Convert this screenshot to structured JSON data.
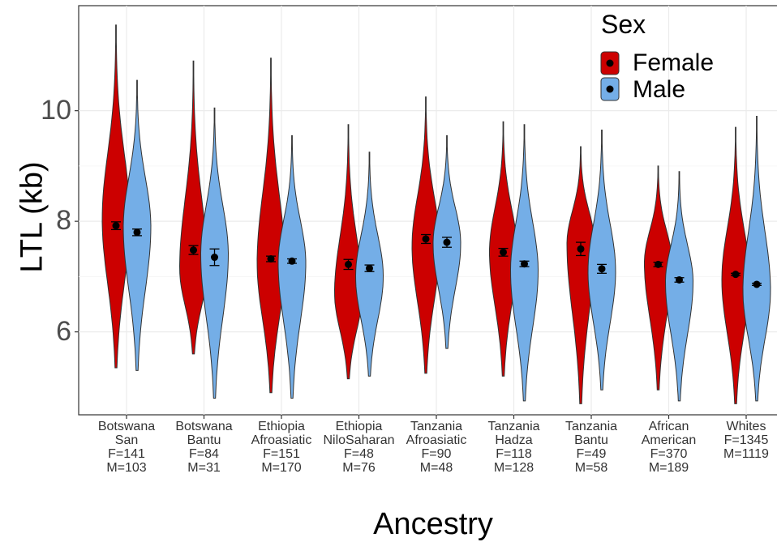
{
  "chart_data": {
    "type": "violin",
    "xlabel": "Ancestry",
    "ylabel": "LTL (kb)",
    "ylim": [
      4.5,
      11.9
    ],
    "yticks": [
      6,
      8,
      10
    ],
    "grid": true,
    "legend": {
      "title": "Sex",
      "placement": "top-right",
      "entries": [
        {
          "label": "Female",
          "color": "#cc0000"
        },
        {
          "label": "Male",
          "color": "#74aee7"
        }
      ]
    },
    "categories": [
      {
        "label": [
          "Botswana",
          "San",
          "F=141",
          "M=103"
        ]
      },
      {
        "label": [
          "Botswana",
          "Bantu",
          "F=84",
          "M=31"
        ]
      },
      {
        "label": [
          "Ethiopia",
          "Afroasiatic",
          "F=151",
          "M=170"
        ]
      },
      {
        "label": [
          "Ethiopia",
          "NiloSaharan",
          "F=48",
          "M=76"
        ]
      },
      {
        "label": [
          "Tanzania",
          "Afroasiatic",
          "F=90",
          "M=48"
        ]
      },
      {
        "label": [
          "Tanzania",
          "Hadza",
          "F=118",
          "M=128"
        ]
      },
      {
        "label": [
          "Tanzania",
          "Bantu",
          "F=49",
          "M=58"
        ]
      },
      {
        "label": [
          "African",
          "American",
          "F=370",
          "M=189"
        ]
      },
      {
        "label": [
          "Whites",
          "F=1345",
          "M=1119"
        ]
      }
    ],
    "series": [
      {
        "name": "Female",
        "color": "#cc0000",
        "min": [
          5.35,
          5.6,
          4.9,
          5.15,
          5.25,
          5.2,
          4.7,
          4.95,
          4.7
        ],
        "max": [
          11.55,
          10.9,
          10.95,
          9.75,
          10.25,
          9.8,
          9.35,
          9.0,
          9.7
        ],
        "mode": [
          8.05,
          7.15,
          7.25,
          6.7,
          7.55,
          7.45,
          7.6,
          7.25,
          6.95
        ],
        "mean": [
          7.92,
          7.48,
          7.32,
          7.22,
          7.68,
          7.44,
          7.5,
          7.22,
          7.04
        ],
        "se": [
          0.07,
          0.08,
          0.05,
          0.09,
          0.08,
          0.07,
          0.12,
          0.04,
          0.02
        ]
      },
      {
        "name": "Male",
        "color": "#74aee7",
        "min": [
          5.3,
          4.8,
          4.8,
          5.2,
          5.7,
          4.75,
          4.95,
          4.75,
          4.75
        ],
        "max": [
          10.55,
          10.05,
          9.55,
          9.25,
          9.55,
          9.75,
          9.65,
          8.9,
          9.9
        ],
        "mode": [
          7.9,
          7.4,
          7.25,
          7.0,
          7.6,
          7.1,
          7.1,
          6.9,
          6.75
        ],
        "mean": [
          7.8,
          7.35,
          7.28,
          7.15,
          7.62,
          7.23,
          7.14,
          6.94,
          6.86
        ],
        "se": [
          0.06,
          0.15,
          0.04,
          0.06,
          0.09,
          0.05,
          0.08,
          0.04,
          0.02
        ]
      }
    ]
  }
}
